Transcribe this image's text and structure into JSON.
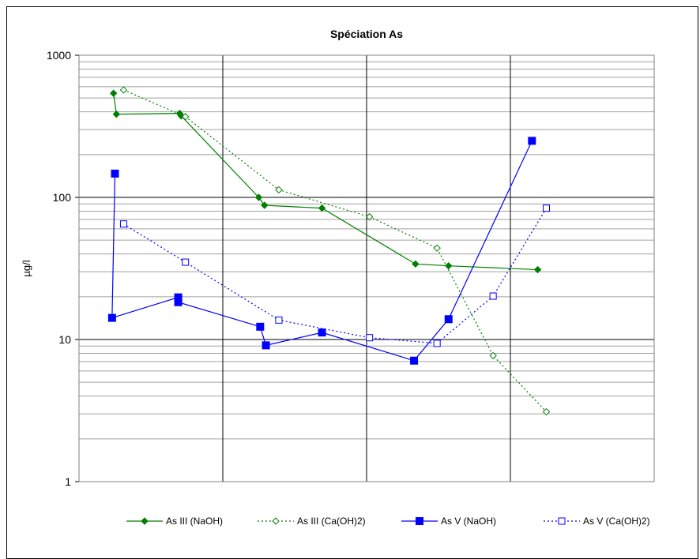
{
  "chart_data": {
    "type": "line",
    "title": "Spéciation As",
    "xlabel": "",
    "ylabel": "µg/l",
    "yscale": "log",
    "ylim": [
      1,
      1000
    ],
    "xlim": [
      0,
      4
    ],
    "y_ticks": [
      1,
      10,
      100,
      1000
    ],
    "y_tick_labels": [
      "1",
      "10",
      "100",
      "1000"
    ],
    "grid": true,
    "legend_position": "bottom",
    "series": [
      {
        "name": "As III (NaOH)",
        "color": "#008000",
        "line_style": "solid",
        "marker": "filled-diamond",
        "x": [
          0.24,
          0.26,
          0.7,
          0.71,
          1.25,
          1.29,
          1.69,
          2.34,
          2.57,
          3.19
        ],
        "y": [
          540,
          385,
          390,
          375,
          100,
          88,
          84,
          34,
          33,
          31
        ]
      },
      {
        "name": "As III (Ca(OH)2)",
        "color": "#008000",
        "line_style": "dotted",
        "marker": "open-diamond",
        "x": [
          0.31,
          0.74,
          1.39,
          2.02,
          2.49,
          2.88,
          3.25
        ],
        "y": [
          570,
          370,
          113,
          73,
          44,
          7.7,
          3.1
        ]
      },
      {
        "name": "As V (NaOH)",
        "color": "#0000ff",
        "line_style": "solid",
        "marker": "filled-square",
        "x": [
          0.25,
          0.23,
          0.69,
          0.69,
          1.26,
          1.3,
          1.69,
          2.33,
          2.57,
          3.15
        ],
        "y": [
          147,
          14.2,
          19.8,
          18.3,
          12.3,
          9.1,
          11.2,
          7.1,
          13.9,
          250
        ]
      },
      {
        "name": "As V (Ca(OH)2)",
        "color": "#0000ff",
        "line_style": "dotted",
        "marker": "open-square",
        "x": [
          0.31,
          0.74,
          1.39,
          2.02,
          2.49,
          2.88,
          3.25
        ],
        "y": [
          65,
          35,
          13.7,
          10.3,
          9.4,
          20.2,
          84
        ]
      }
    ]
  }
}
